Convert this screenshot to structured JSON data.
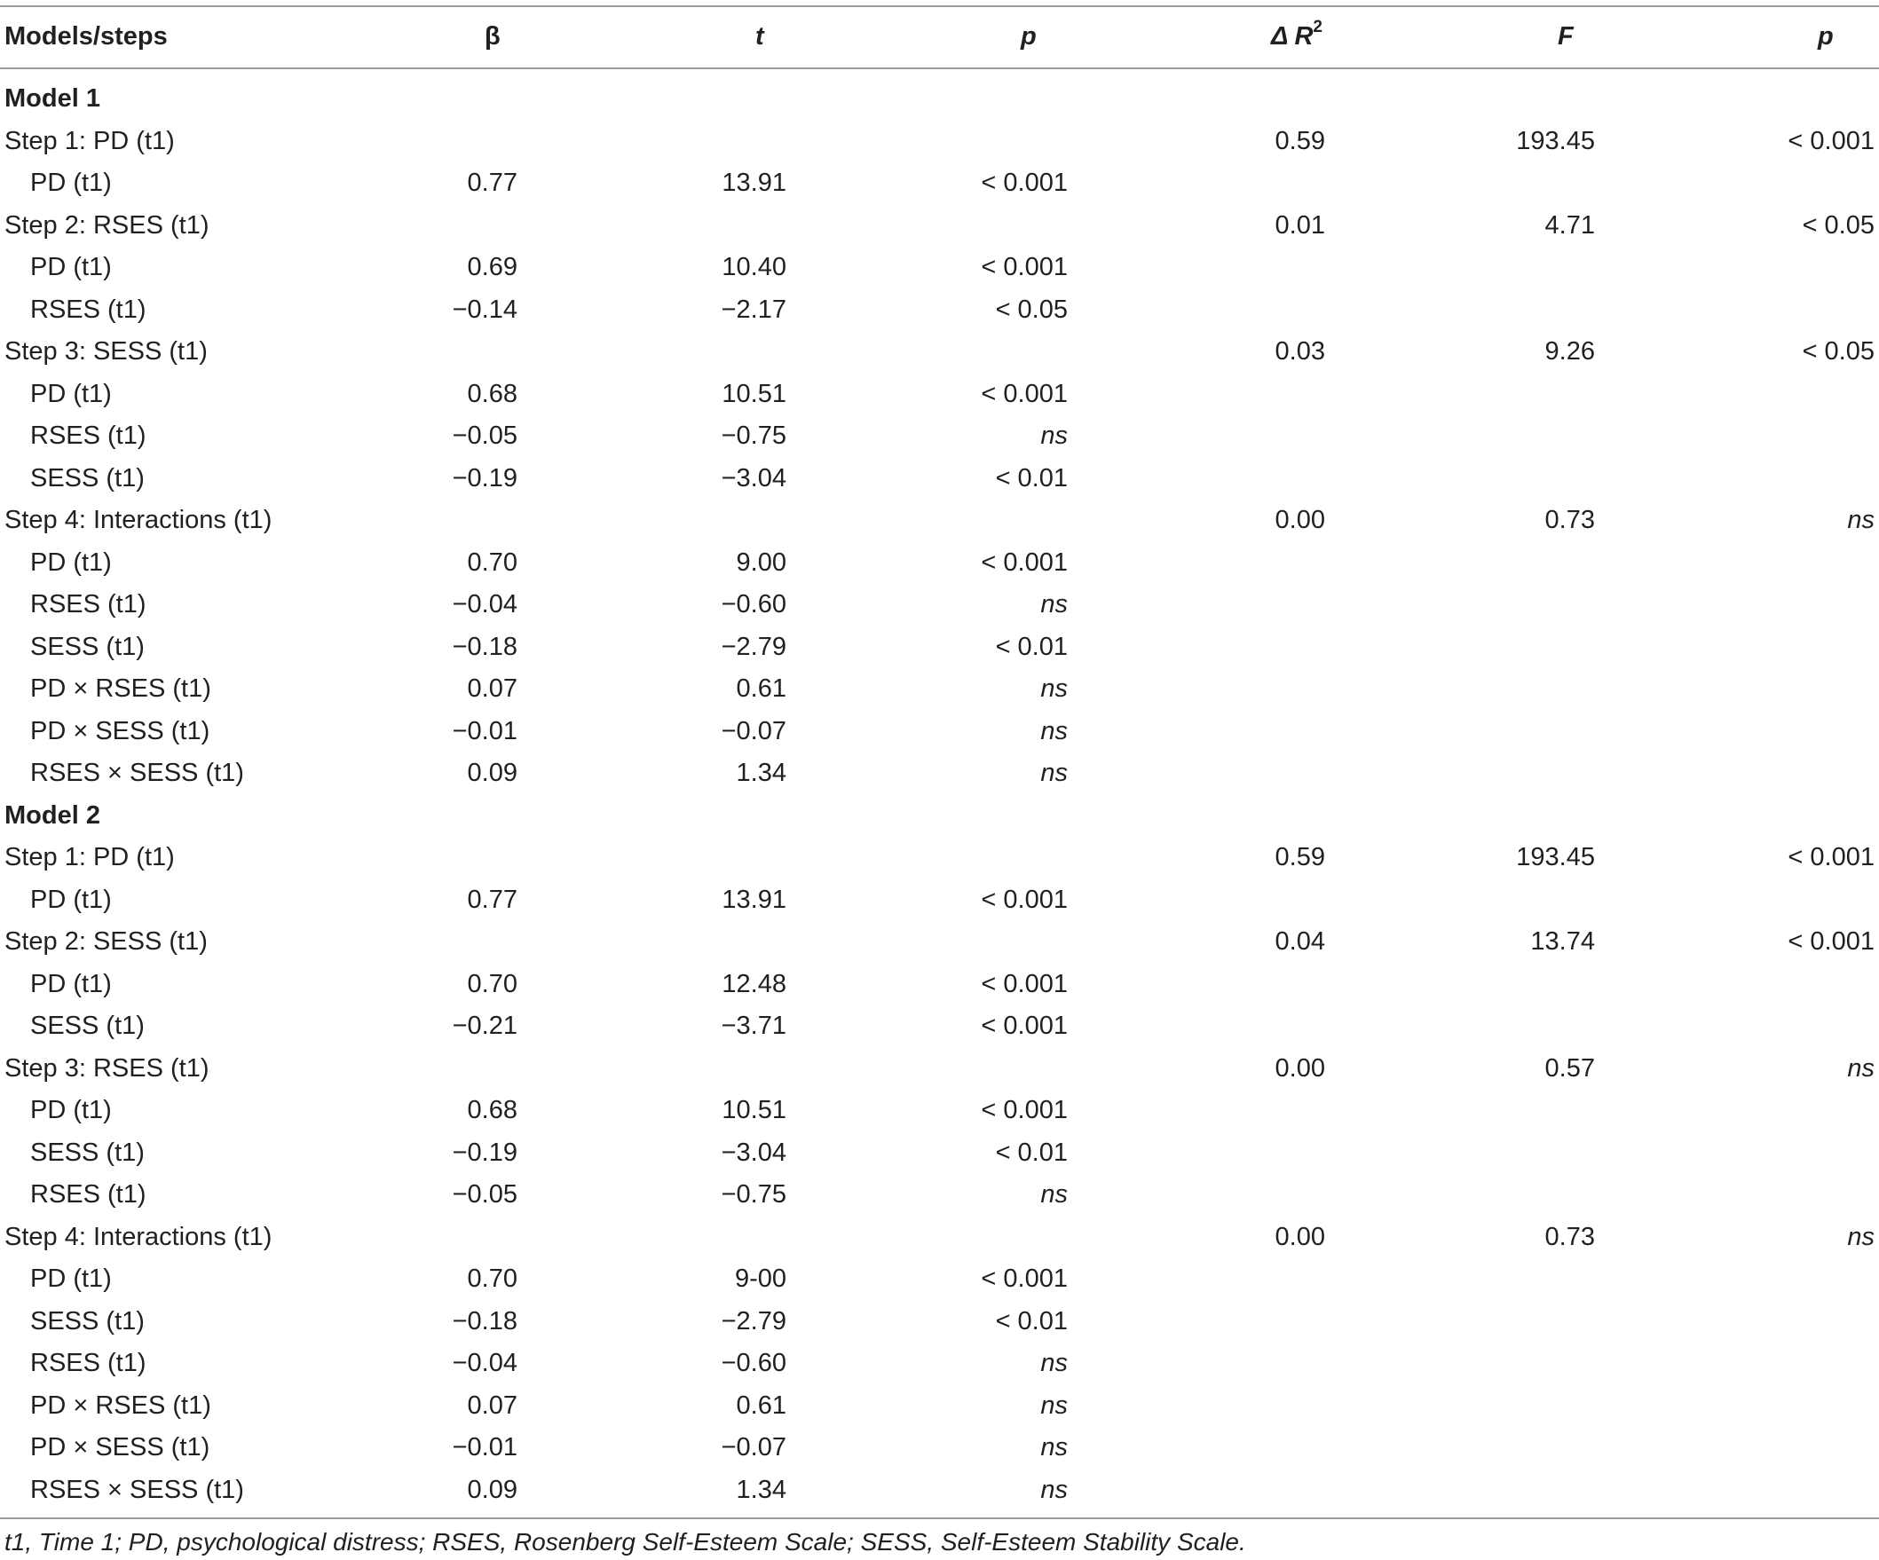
{
  "header": {
    "col_label": "Models/steps",
    "col_beta": "β",
    "col_t": "t",
    "col_p": "p",
    "col_dr2": "Δ R",
    "col_dr2_sup": "2",
    "col_f": "F",
    "col_p2": "p"
  },
  "rows": [
    {
      "type": "model",
      "label": "Model 1",
      "beta": "",
      "t": "",
      "p": "",
      "dr2": "",
      "f": "",
      "p2": ""
    },
    {
      "type": "step",
      "label": "Step 1: PD (t1)",
      "beta": "",
      "t": "",
      "p": "",
      "dr2": "0.59",
      "f": "193.45",
      "p2": "< 0.001"
    },
    {
      "type": "var",
      "label": "PD (t1)",
      "beta": "0.77",
      "t": "13.91",
      "p": "< 0.001",
      "dr2": "",
      "f": "",
      "p2": ""
    },
    {
      "type": "step",
      "label": "Step 2: RSES (t1)",
      "beta": "",
      "t": "",
      "p": "",
      "dr2": "0.01",
      "f": "4.71",
      "p2": "< 0.05"
    },
    {
      "type": "var",
      "label": "PD (t1)",
      "beta": "0.69",
      "t": "10.40",
      "p": "< 0.001",
      "dr2": "",
      "f": "",
      "p2": ""
    },
    {
      "type": "var",
      "label": "RSES (t1)",
      "beta": "−0.14",
      "t": "−2.17",
      "p": "< 0.05",
      "dr2": "",
      "f": "",
      "p2": ""
    },
    {
      "type": "step",
      "label": "Step 3: SESS (t1)",
      "beta": "",
      "t": "",
      "p": "",
      "dr2": "0.03",
      "f": "9.26",
      "p2": "< 0.05"
    },
    {
      "type": "var",
      "label": "PD (t1)",
      "beta": "0.68",
      "t": "10.51",
      "p": "< 0.001",
      "dr2": "",
      "f": "",
      "p2": ""
    },
    {
      "type": "var",
      "label": "RSES (t1)",
      "beta": "−0.05",
      "t": "−0.75",
      "p": "ns",
      "dr2": "",
      "f": "",
      "p2": ""
    },
    {
      "type": "var",
      "label": "SESS (t1)",
      "beta": "−0.19",
      "t": "−3.04",
      "p": "< 0.01",
      "dr2": "",
      "f": "",
      "p2": ""
    },
    {
      "type": "step",
      "label": "Step 4: Interactions (t1)",
      "beta": "",
      "t": "",
      "p": "",
      "dr2": "0.00",
      "f": "0.73",
      "p2": "ns"
    },
    {
      "type": "var",
      "label": "PD (t1)",
      "beta": "0.70",
      "t": "9.00",
      "p": "< 0.001",
      "dr2": "",
      "f": "",
      "p2": ""
    },
    {
      "type": "var",
      "label": "RSES (t1)",
      "beta": "−0.04",
      "t": "−0.60",
      "p": "ns",
      "dr2": "",
      "f": "",
      "p2": ""
    },
    {
      "type": "var",
      "label": "SESS (t1)",
      "beta": "−0.18",
      "t": "−2.79",
      "p": "< 0.01",
      "dr2": "",
      "f": "",
      "p2": ""
    },
    {
      "type": "var",
      "label": "PD × RSES (t1)",
      "beta": "0.07",
      "t": "0.61",
      "p": "ns",
      "dr2": "",
      "f": "",
      "p2": ""
    },
    {
      "type": "var",
      "label": "PD × SESS (t1)",
      "beta": "−0.01",
      "t": "−0.07",
      "p": "ns",
      "dr2": "",
      "f": "",
      "p2": ""
    },
    {
      "type": "var",
      "label": "RSES × SESS (t1)",
      "beta": "0.09",
      "t": "1.34",
      "p": "ns",
      "dr2": "",
      "f": "",
      "p2": ""
    },
    {
      "type": "model",
      "label": "Model 2",
      "beta": "",
      "t": "",
      "p": "",
      "dr2": "",
      "f": "",
      "p2": ""
    },
    {
      "type": "step",
      "label": "Step 1: PD (t1)",
      "beta": "",
      "t": "",
      "p": "",
      "dr2": "0.59",
      "f": "193.45",
      "p2": "< 0.001"
    },
    {
      "type": "var",
      "label": "PD (t1)",
      "beta": "0.77",
      "t": "13.91",
      "p": "< 0.001",
      "dr2": "",
      "f": "",
      "p2": ""
    },
    {
      "type": "step",
      "label": "Step 2: SESS (t1)",
      "beta": "",
      "t": "",
      "p": "",
      "dr2": "0.04",
      "f": "13.74",
      "p2": "< 0.001"
    },
    {
      "type": "var",
      "label": "PD (t1)",
      "beta": "0.70",
      "t": "12.48",
      "p": "< 0.001",
      "dr2": "",
      "f": "",
      "p2": ""
    },
    {
      "type": "var",
      "label": "SESS (t1)",
      "beta": "−0.21",
      "t": "−3.71",
      "p": "< 0.001",
      "dr2": "",
      "f": "",
      "p2": ""
    },
    {
      "type": "step",
      "label": "Step 3: RSES (t1)",
      "beta": "",
      "t": "",
      "p": "",
      "dr2": "0.00",
      "f": "0.57",
      "p2": "ns"
    },
    {
      "type": "var",
      "label": "PD (t1)",
      "beta": "0.68",
      "t": "10.51",
      "p": "< 0.001",
      "dr2": "",
      "f": "",
      "p2": ""
    },
    {
      "type": "var",
      "label": "SESS (t1)",
      "beta": "−0.19",
      "t": "−3.04",
      "p": "< 0.01",
      "dr2": "",
      "f": "",
      "p2": ""
    },
    {
      "type": "var",
      "label": "RSES (t1)",
      "beta": "−0.05",
      "t": "−0.75",
      "p": "ns",
      "dr2": "",
      "f": "",
      "p2": ""
    },
    {
      "type": "step",
      "label": "Step 4: Interactions (t1)",
      "beta": "",
      "t": "",
      "p": "",
      "dr2": "0.00",
      "f": "0.73",
      "p2": "ns"
    },
    {
      "type": "var",
      "label": "PD (t1)",
      "beta": "0.70",
      "t": "9-00",
      "p": "< 0.001",
      "dr2": "",
      "f": "",
      "p2": ""
    },
    {
      "type": "var",
      "label": "SESS (t1)",
      "beta": "−0.18",
      "t": "−2.79",
      "p": "< 0.01",
      "dr2": "",
      "f": "",
      "p2": ""
    },
    {
      "type": "var",
      "label": "RSES (t1)",
      "beta": "−0.04",
      "t": "−0.60",
      "p": "ns",
      "dr2": "",
      "f": "",
      "p2": ""
    },
    {
      "type": "var",
      "label": "PD × RSES (t1)",
      "beta": "0.07",
      "t": "0.61",
      "p": "ns",
      "dr2": "",
      "f": "",
      "p2": ""
    },
    {
      "type": "var",
      "label": "PD × SESS (t1)",
      "beta": "−0.01",
      "t": "−0.07",
      "p": "ns",
      "dr2": "",
      "f": "",
      "p2": ""
    },
    {
      "type": "var",
      "label": "RSES × SESS (t1)",
      "beta": "0.09",
      "t": "1.34",
      "p": "ns",
      "dr2": "",
      "f": "",
      "p2": ""
    }
  ],
  "footnote": "t1, Time 1; PD, psychological distress; RSES, Rosenberg Self-Esteem Scale; SESS, Self-Esteem Stability Scale."
}
